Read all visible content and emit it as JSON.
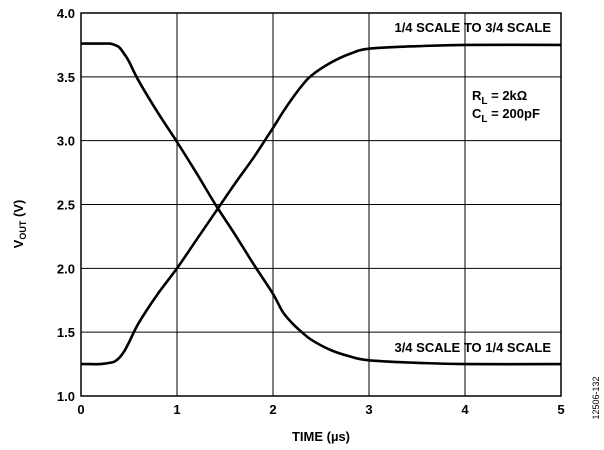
{
  "chart_data": {
    "type": "line",
    "title": "",
    "xlabel": "TIME (µs)",
    "ylabel_main": "V",
    "ylabel_sub": "OUT",
    "ylabel_unit": " (V)",
    "xlim": [
      0,
      5
    ],
    "ylim": [
      1.0,
      4.0
    ],
    "grid": true,
    "x_ticks": [
      "0",
      "1",
      "2",
      "3",
      "4",
      "5"
    ],
    "y_ticks": [
      "1.0",
      "1.5",
      "2.0",
      "2.5",
      "3.0",
      "3.5",
      "4.0"
    ],
    "series": [
      {
        "name": "1/4 SCALE TO 3/4 SCALE",
        "x": [
          0,
          0.1,
          0.2,
          0.3,
          0.35,
          0.4,
          0.45,
          0.5,
          0.6,
          0.8,
          1.0,
          1.2,
          1.4,
          1.6,
          1.8,
          2.0,
          2.1,
          2.2,
          2.3,
          2.4,
          2.6,
          2.8,
          3.0,
          3.5,
          4.0,
          5.0
        ],
        "values": [
          1.25,
          1.25,
          1.25,
          1.26,
          1.27,
          1.3,
          1.35,
          1.42,
          1.57,
          1.8,
          2.0,
          2.22,
          2.44,
          2.66,
          2.87,
          3.1,
          3.22,
          3.33,
          3.43,
          3.51,
          3.61,
          3.68,
          3.72,
          3.74,
          3.75,
          3.75
        ]
      },
      {
        "name": "3/4 SCALE TO 1/4 SCALE",
        "x": [
          0,
          0.1,
          0.2,
          0.3,
          0.35,
          0.4,
          0.45,
          0.5,
          0.6,
          0.8,
          1.0,
          1.2,
          1.4,
          1.6,
          1.8,
          2.0,
          2.1,
          2.2,
          2.3,
          2.4,
          2.6,
          2.8,
          3.0,
          3.5,
          4.0,
          5.0
        ],
        "values": [
          3.76,
          3.76,
          3.76,
          3.76,
          3.75,
          3.73,
          3.68,
          3.62,
          3.47,
          3.22,
          2.99,
          2.75,
          2.5,
          2.27,
          2.03,
          1.8,
          1.66,
          1.57,
          1.5,
          1.44,
          1.36,
          1.31,
          1.28,
          1.26,
          1.25,
          1.25
        ]
      }
    ],
    "annotations": {
      "rl_main": "R",
      "rl_sub": "L",
      "rl_value": " = 2kΩ",
      "cl_main": "C",
      "cl_sub": "L",
      "cl_value": " = 200pF"
    },
    "figure_id": "12506-132"
  }
}
